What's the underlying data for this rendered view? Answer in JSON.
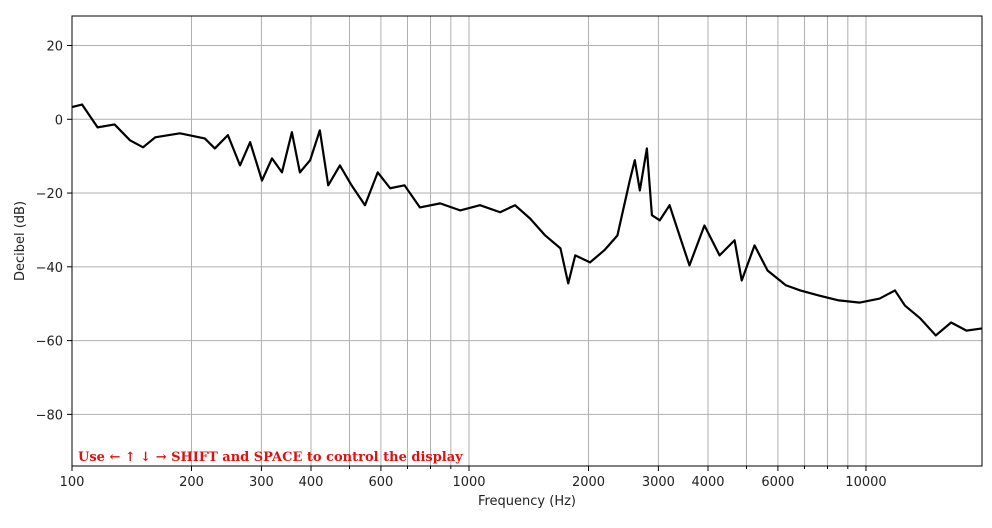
{
  "chart_data": {
    "type": "line",
    "x_label": "Frequency (Hz)",
    "y_label": "Decibel (dB)",
    "annotation": "Use ← ↑ ↓ → SHIFT and SPACE to control the display",
    "xscale": "log",
    "grid": true,
    "xlim": [
      100,
      19600
    ],
    "ylim": [
      -94,
      28
    ],
    "xticks": [
      100,
      200,
      300,
      400,
      600,
      1000,
      2000,
      3000,
      4000,
      6000,
      10000
    ],
    "xminorticks": [
      500,
      700,
      800,
      900,
      5000,
      7000,
      8000,
      9000
    ],
    "yticks": [
      {
        "value": -80,
        "label": "−80"
      },
      {
        "value": -60,
        "label": "−60"
      },
      {
        "value": -40,
        "label": "−40"
      },
      {
        "value": -20,
        "label": "−20"
      },
      0,
      20
    ],
    "x": [
      100,
      106,
      116,
      128,
      140,
      151,
      162,
      187,
      216,
      229,
      247,
      265,
      281,
      301,
      319,
      338,
      358,
      375,
      398,
      421,
      442,
      473,
      506,
      547,
      589,
      633,
      688,
      752,
      846,
      950,
      1066,
      1198,
      1306,
      1425,
      1556,
      1700,
      1778,
      1852,
      2018,
      2193,
      2365,
      2541,
      2616,
      2694,
      2806,
      2889,
      3023,
      3201,
      3391,
      3592,
      3918,
      4278,
      4667,
      4864,
      5240,
      5650,
      6282,
      6832,
      7618,
      8543,
      9655,
      10827,
      11830,
      12534,
      13707,
      14990,
      16387,
      17910,
      19600
    ],
    "series": [
      {
        "color": "#000000",
        "values": [
          3.3,
          4,
          -2.2,
          -1.4,
          -5.7,
          -7.6,
          -4.9,
          -3.8,
          -5.2,
          -7.9,
          -4.3,
          -12.5,
          -6.2,
          -16.6,
          -10.6,
          -14.4,
          -3.5,
          -14.4,
          -11.1,
          -3,
          -17.9,
          -12.5,
          -17.9,
          -23.3,
          -14.4,
          -18.7,
          -17.9,
          -23.9,
          -22.8,
          -24.7,
          -23.3,
          -25.2,
          -23.3,
          -26.9,
          -31.5,
          -35,
          -44.5,
          -36.9,
          -38.8,
          -35.5,
          -31.5,
          -16.6,
          -11.1,
          -19.3,
          -7.9,
          -26,
          -27.4,
          -23.3,
          -31.5,
          -39.6,
          -28.8,
          -36.9,
          -32.8,
          -43.7,
          -34.2,
          -41,
          -45,
          -46.4,
          -47.8,
          -49.1,
          -49.7,
          -48.6,
          -46.4,
          -50.5,
          -54,
          -58.6,
          -55.1,
          -57.3,
          -56.7
        ]
      }
    ]
  }
}
